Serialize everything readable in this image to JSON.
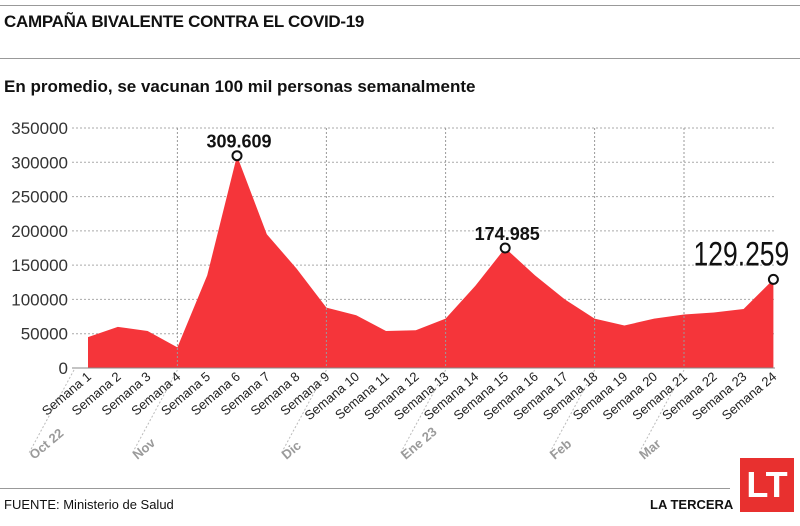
{
  "title": "CAMPAÑA BIVALENTE CONTRA EL COVID-19",
  "subtitle": "En promedio, se vacunan 100 mil personas semanalmente",
  "source": "FUENTE: Ministerio de Salud",
  "brand": "LA TERCERA",
  "logo": "LT",
  "colors": {
    "fill": "#f5353a",
    "month": "#9a9a9a"
  },
  "chart_data": {
    "type": "area",
    "title": "En promedio, se vacunan 100 mil personas semanalmente",
    "xlabel": "",
    "ylabel": "",
    "ylim": [
      0,
      350000
    ],
    "yticks": [
      "0",
      "50000",
      "100000",
      "150000",
      "200000",
      "250000",
      "300000",
      "350000"
    ],
    "grid": true,
    "categories": [
      "Semana 1",
      "Semana 2",
      "Semana 3",
      "Semana 4",
      "Semana 5",
      "Semana 6",
      "Semana 7",
      "Semana 8",
      "Semana 9",
      "Semana 10",
      "Semana 11",
      "Semana 12",
      "Semana 13",
      "Semana 14",
      "Semana 15",
      "Semana 16",
      "Semana 17",
      "Semana 18",
      "Semana 19",
      "Semana 20",
      "Semana 21",
      "Semana 22",
      "Semana 23",
      "Semana 24"
    ],
    "values": [
      45000,
      60000,
      54000,
      30000,
      135000,
      309609,
      195000,
      145000,
      88000,
      77000,
      54000,
      55000,
      72000,
      120000,
      174985,
      135000,
      100000,
      72000,
      62000,
      72000,
      78000,
      81000,
      86000,
      129259
    ],
    "months": [
      {
        "label": "Oct 22",
        "at": 0
      },
      {
        "label": "Nov",
        "at": 3
      },
      {
        "label": "Dic",
        "at": 8
      },
      {
        "label": "Ene 23",
        "at": 12
      },
      {
        "label": "Feb",
        "at": 17
      },
      {
        "label": "Mar",
        "at": 20
      }
    ],
    "annotations": [
      {
        "index": 5,
        "text": "309.609"
      },
      {
        "index": 14,
        "text": "174.985"
      },
      {
        "index": 23,
        "text": "129.259"
      }
    ]
  }
}
